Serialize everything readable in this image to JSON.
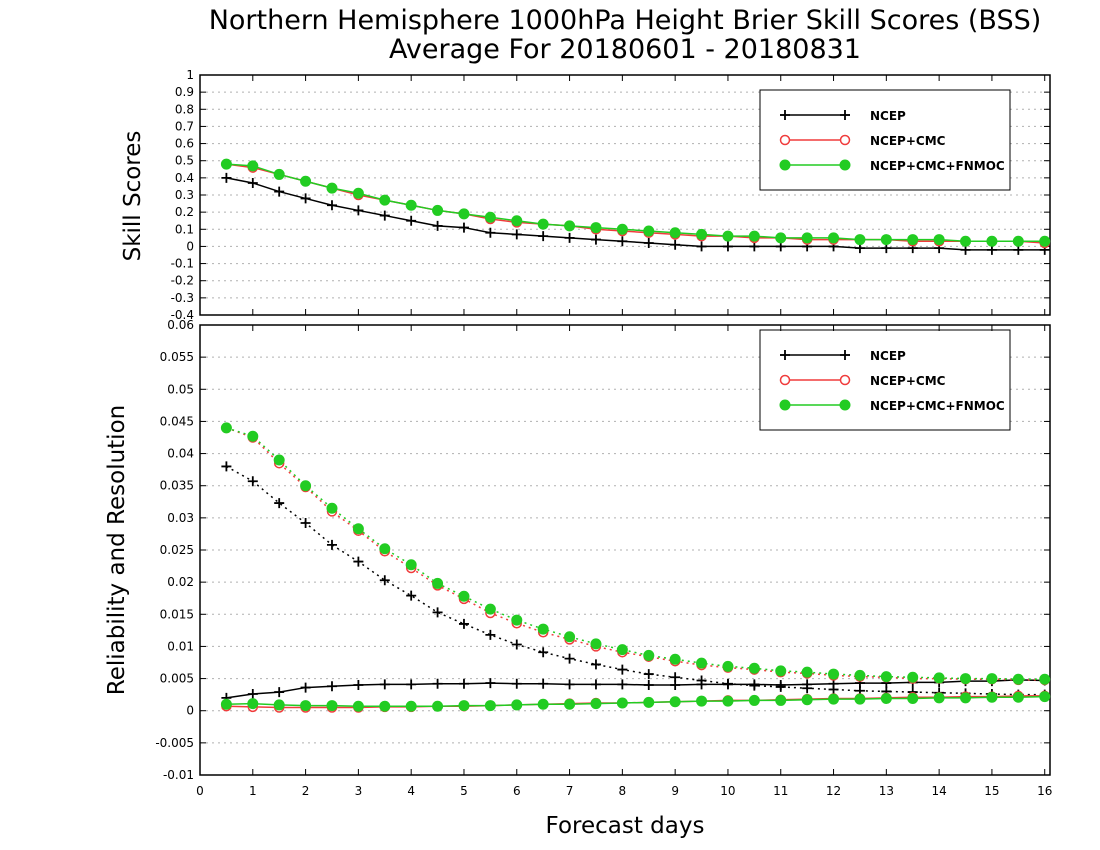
{
  "colors": {
    "ncep": "#000000",
    "ncep_cmc": "#f03c3c",
    "ncep_cmc_fnmoc": "#22cc22",
    "gridline": "#b0b0b0",
    "frame": "#000000"
  },
  "chart_data": {
    "type": "line",
    "title_line1": "Northern Hemisphere 1000hPa Height Brier Skill Scores (BSS)",
    "title_line2": "Average For 20180601 - 20180831",
    "xlabel": "Forecast days",
    "xlim": [
      0,
      16.1
    ],
    "x_ticks": [
      "0",
      "1",
      "2",
      "3",
      "4",
      "5",
      "6",
      "7",
      "8",
      "9",
      "10",
      "11",
      "12",
      "13",
      "14",
      "15",
      "16"
    ],
    "x": [
      0.5,
      1,
      1.5,
      2,
      2.5,
      3,
      3.5,
      4,
      4.5,
      5,
      5.5,
      6,
      6.5,
      7,
      7.5,
      8,
      8.5,
      9,
      9.5,
      10,
      10.5,
      11,
      11.5,
      12,
      12.5,
      13,
      13.5,
      14,
      14.5,
      15,
      15.5,
      16
    ],
    "grid": "horizontal dotted",
    "panels": [
      {
        "ylabel": "Skill Scores",
        "ylim": [
          -0.4,
          1
        ],
        "y_ticks": [
          "-0.4",
          "-0.3",
          "-0.2",
          "-0.1",
          "0",
          "0.1",
          "0.2",
          "0.3",
          "0.4",
          "0.5",
          "0.6",
          "0.7",
          "0.8",
          "0.9",
          "1"
        ],
        "legend_position": "top-right",
        "legend": [
          "NCEP",
          "NCEP+CMC",
          "NCEP+CMC+FNMOC"
        ],
        "series": [
          {
            "name": "NCEP",
            "color_key": "ncep",
            "marker": "plus",
            "style": "solid",
            "values": [
              0.4,
              0.37,
              0.32,
              0.28,
              0.24,
              0.21,
              0.18,
              0.15,
              0.12,
              0.11,
              0.08,
              0.07,
              0.06,
              0.05,
              0.04,
              0.03,
              0.02,
              0.01,
              0.0,
              0.0,
              0.0,
              0.0,
              0.0,
              0.0,
              -0.01,
              -0.01,
              -0.01,
              -0.01,
              -0.02,
              -0.02,
              -0.02,
              -0.02
            ]
          },
          {
            "name": "NCEP+CMC",
            "color_key": "ncep_cmc",
            "marker": "circle-open",
            "style": "solid",
            "values": [
              0.48,
              0.46,
              0.42,
              0.38,
              0.34,
              0.3,
              0.27,
              0.24,
              0.21,
              0.19,
              0.16,
              0.14,
              0.13,
              0.12,
              0.1,
              0.09,
              0.08,
              0.07,
              0.06,
              0.06,
              0.05,
              0.05,
              0.04,
              0.04,
              0.04,
              0.04,
              0.03,
              0.03,
              0.03,
              0.03,
              0.03,
              0.02
            ]
          },
          {
            "name": "NCEP+CMC+FNMOC",
            "color_key": "ncep_cmc_fnmoc",
            "marker": "circle-filled",
            "style": "solid",
            "values": [
              0.48,
              0.47,
              0.42,
              0.38,
              0.34,
              0.31,
              0.27,
              0.24,
              0.21,
              0.19,
              0.17,
              0.15,
              0.13,
              0.12,
              0.11,
              0.1,
              0.09,
              0.08,
              0.07,
              0.06,
              0.06,
              0.05,
              0.05,
              0.05,
              0.04,
              0.04,
              0.04,
              0.04,
              0.03,
              0.03,
              0.03,
              0.03
            ]
          }
        ]
      },
      {
        "ylabel": "Reliability and Resolution",
        "ylim": [
          -0.01,
          0.06
        ],
        "y_ticks": [
          "-0.01",
          "-0.005",
          "0",
          "0.005",
          "0.01",
          "0.015",
          "0.02",
          "0.025",
          "0.03",
          "0.035",
          "0.04",
          "0.045",
          "0.05",
          "0.055",
          "0.06"
        ],
        "legend_position": "top-right",
        "legend": [
          "NCEP",
          "NCEP+CMC",
          "NCEP+CMC+FNMOC"
        ],
        "series": [
          {
            "name": "NCEP",
            "color_key": "ncep",
            "marker": "plus",
            "style": "dotted",
            "values": [
              0.038,
              0.0357,
              0.0323,
              0.0292,
              0.0258,
              0.0232,
              0.0203,
              0.0179,
              0.0153,
              0.0135,
              0.0118,
              0.0103,
              0.0091,
              0.0081,
              0.0072,
              0.0064,
              0.0057,
              0.0052,
              0.0047,
              0.0042,
              0.0039,
              0.0037,
              0.0035,
              0.0033,
              0.0031,
              0.003,
              0.0029,
              0.0028,
              0.0027,
              0.0026,
              0.0025,
              0.0025
            ]
          },
          {
            "name": "NCEP",
            "color_key": "ncep",
            "marker": "plus",
            "style": "solid",
            "values": [
              0.002,
              0.0026,
              0.0029,
              0.0036,
              0.0038,
              0.004,
              0.0041,
              0.0041,
              0.0042,
              0.0042,
              0.0043,
              0.0042,
              0.0042,
              0.0041,
              0.0041,
              0.0041,
              0.004,
              0.004,
              0.0041,
              0.0041,
              0.0041,
              0.004,
              0.0041,
              0.0042,
              0.0043,
              0.0043,
              0.0044,
              0.0044,
              0.0046,
              0.0046,
              0.0048,
              0.0047
            ]
          },
          {
            "name": "NCEP+CMC",
            "color_key": "ncep_cmc",
            "marker": "circle-open",
            "style": "dotted",
            "values": [
              0.044,
              0.0425,
              0.0385,
              0.0348,
              0.031,
              0.028,
              0.0248,
              0.0222,
              0.0195,
              0.0174,
              0.0152,
              0.0136,
              0.0122,
              0.0111,
              0.01,
              0.0091,
              0.0084,
              0.0077,
              0.0071,
              0.0067,
              0.0064,
              0.006,
              0.0058,
              0.0055,
              0.0053,
              0.0052,
              0.005,
              0.005,
              0.0049,
              0.0049,
              0.0048,
              0.0048
            ]
          },
          {
            "name": "NCEP+CMC",
            "color_key": "ncep_cmc",
            "marker": "circle-open",
            "style": "solid",
            "values": [
              0.0007,
              0.0006,
              0.0005,
              0.0005,
              0.0005,
              0.0005,
              0.0006,
              0.0006,
              0.0007,
              0.0007,
              0.0008,
              0.0009,
              0.001,
              0.0011,
              0.0012,
              0.0012,
              0.0013,
              0.0014,
              0.0015,
              0.0016,
              0.0016,
              0.0017,
              0.0018,
              0.0019,
              0.0019,
              0.002,
              0.0021,
              0.0021,
              0.0022,
              0.0022,
              0.0023,
              0.0023
            ]
          },
          {
            "name": "NCEP+CMC+FNMOC",
            "color_key": "ncep_cmc_fnmoc",
            "marker": "circle-filled",
            "style": "dotted",
            "values": [
              0.044,
              0.0427,
              0.039,
              0.035,
              0.0315,
              0.0283,
              0.0252,
              0.0227,
              0.0198,
              0.0178,
              0.0158,
              0.0141,
              0.0127,
              0.0115,
              0.0104,
              0.0095,
              0.0086,
              0.008,
              0.0074,
              0.0069,
              0.0066,
              0.0062,
              0.006,
              0.0057,
              0.0055,
              0.0053,
              0.0052,
              0.0051,
              0.005,
              0.005,
              0.0049,
              0.0049
            ]
          },
          {
            "name": "NCEP+CMC+FNMOC",
            "color_key": "ncep_cmc_fnmoc",
            "marker": "circle-filled",
            "style": "solid",
            "values": [
              0.001,
              0.0011,
              0.0009,
              0.0008,
              0.0008,
              0.0007,
              0.0007,
              0.0007,
              0.0007,
              0.0008,
              0.0008,
              0.0009,
              0.001,
              0.001,
              0.0011,
              0.0012,
              0.0013,
              0.0014,
              0.0015,
              0.0015,
              0.0016,
              0.0016,
              0.0017,
              0.0018,
              0.0018,
              0.0019,
              0.0019,
              0.002,
              0.002,
              0.0021,
              0.0021,
              0.0022
            ]
          }
        ]
      }
    ]
  }
}
